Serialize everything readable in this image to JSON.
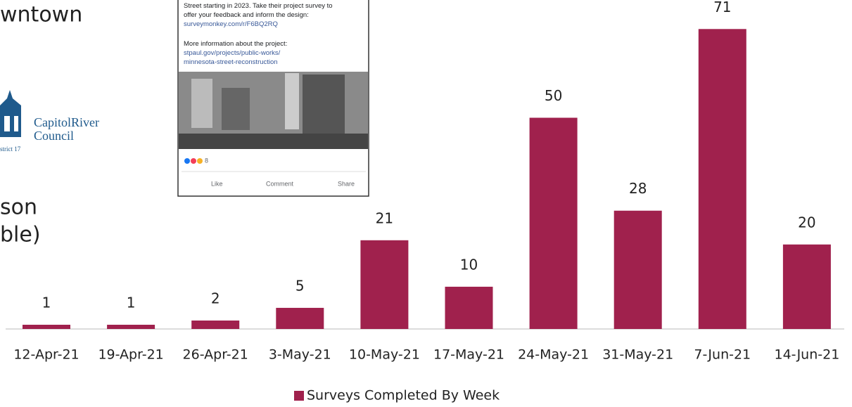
{
  "slide": {
    "title_fragment": "wntown",
    "body_line_1": "son",
    "body_line_2": "ble)",
    "logo_name_1": "CapitolRiver",
    "logo_name_2": "Council",
    "logo_district": "strict 17"
  },
  "inset": {
    "post_lines": [
      "Street starting in 2023. Take their project survey to",
      "offer your feedback and inform the design:"
    ],
    "survey_link": "surveymonkey.com/r/F6BQ2RQ",
    "more_info": "More information about the project:",
    "project_link_1": "stpaul.gov/projects/public-works/",
    "project_link_2": "minnesota-street-reconstruction",
    "reaction_count": "8",
    "like": "Like",
    "comment": "Comment",
    "share": "Share"
  },
  "chart_data": {
    "type": "bar",
    "categories": [
      "12-Apr-21",
      "19-Apr-21",
      "26-Apr-21",
      "3-May-21",
      "10-May-21",
      "17-May-21",
      "24-May-21",
      "31-May-21",
      "7-Jun-21",
      "14-Jun-21"
    ],
    "series": [
      {
        "name": "Surveys Completed By Week",
        "color": "#a0214d",
        "values": [
          1,
          1,
          2,
          5,
          21,
          10,
          50,
          28,
          71,
          20
        ]
      }
    ],
    "legend": "bottom"
  }
}
